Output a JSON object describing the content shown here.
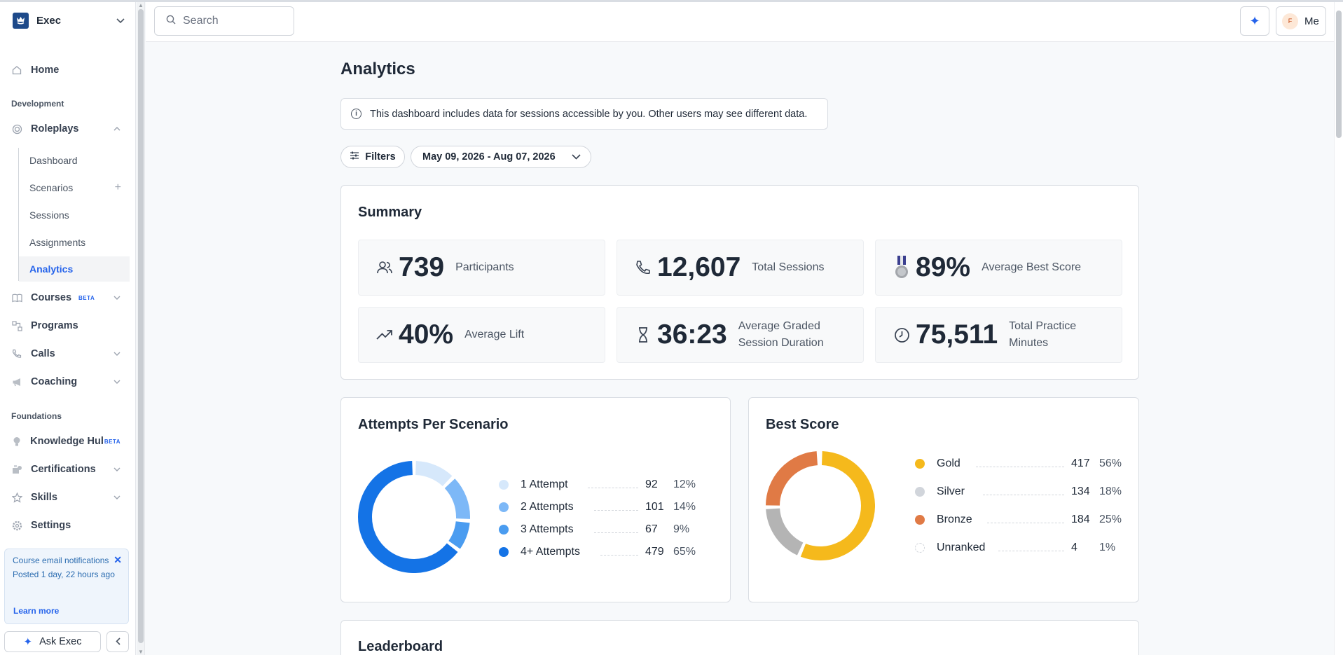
{
  "org": {
    "name": "Exec"
  },
  "nav": {
    "home": "Home",
    "development_label": "Development",
    "roleplays": "Roleplays",
    "roleplays_sub": [
      "Dashboard",
      "Scenarios",
      "Sessions",
      "Assignments",
      "Analytics"
    ],
    "courses": "Courses",
    "courses_badge": "BETA",
    "programs": "Programs",
    "calls": "Calls",
    "coaching": "Coaching",
    "foundations_label": "Foundations",
    "knowledge_hub": "Knowledge Hub",
    "knowledge_hub_badge": "BETA",
    "certifications": "Certifications",
    "skills": "Skills",
    "settings": "Settings"
  },
  "notification": {
    "title": "Course email notifications",
    "posted": "Posted 1 day, 22 hours ago",
    "link": "Learn more"
  },
  "ask_button": "Ask Exec",
  "topbar": {
    "search_placeholder": "Search",
    "user_initial": "F",
    "user_label": "Me"
  },
  "page": {
    "title": "Analytics",
    "info": "This dashboard includes data for sessions accessible by you. Other users may see different data.",
    "filters_label": "Filters",
    "date_range": "May 09, 2026 - Aug 07, 2026"
  },
  "summary": {
    "title": "Summary",
    "stats": [
      {
        "icon": "participants-icon",
        "value": "739",
        "label": "Participants"
      },
      {
        "icon": "phone-icon",
        "value": "12,607",
        "label": "Total Sessions"
      },
      {
        "icon": "medal-icon",
        "value": "89%",
        "label": "Average Best Score"
      },
      {
        "icon": "trending-up-icon",
        "value": "40%",
        "label": "Average Lift"
      },
      {
        "icon": "hourglass-icon",
        "value": "36:23",
        "label": "Average Graded Session Duration"
      },
      {
        "icon": "clock-icon",
        "value": "75,511",
        "label": "Total Practice Minutes"
      }
    ]
  },
  "attempts": {
    "title": "Attempts Per Scenario",
    "rows": [
      {
        "label": "1 Attempt",
        "count": "92",
        "pct": "12%",
        "color": "#d6e8fb"
      },
      {
        "label": "2 Attempts",
        "count": "101",
        "pct": "14%",
        "color": "#7db8f7"
      },
      {
        "label": "3 Attempts",
        "count": "67",
        "pct": "9%",
        "color": "#4a9cf0"
      },
      {
        "label": "4+ Attempts",
        "count": "479",
        "pct": "65%",
        "color": "#1473e6"
      }
    ]
  },
  "best_score": {
    "title": "Best Score",
    "rows": [
      {
        "label": "Gold",
        "count": "417",
        "pct": "56%",
        "color": "#f5b91c"
      },
      {
        "label": "Silver",
        "count": "134",
        "pct": "18%",
        "color": "#b4b4b4"
      },
      {
        "label": "Bronze",
        "count": "184",
        "pct": "25%",
        "color": "#e07a45"
      },
      {
        "label": "Unranked",
        "count": "4",
        "pct": "1%",
        "color": "#e5e7eb"
      }
    ]
  },
  "leaderboard": {
    "title": "Leaderboard"
  },
  "chart_data": [
    {
      "type": "pie",
      "title": "Attempts Per Scenario",
      "categories": [
        "1 Attempt",
        "2 Attempts",
        "3 Attempts",
        "4+ Attempts"
      ],
      "values": [
        92,
        101,
        67,
        479
      ]
    },
    {
      "type": "pie",
      "title": "Best Score",
      "categories": [
        "Gold",
        "Silver",
        "Bronze",
        "Unranked"
      ],
      "values": [
        417,
        134,
        184,
        4
      ]
    }
  ]
}
